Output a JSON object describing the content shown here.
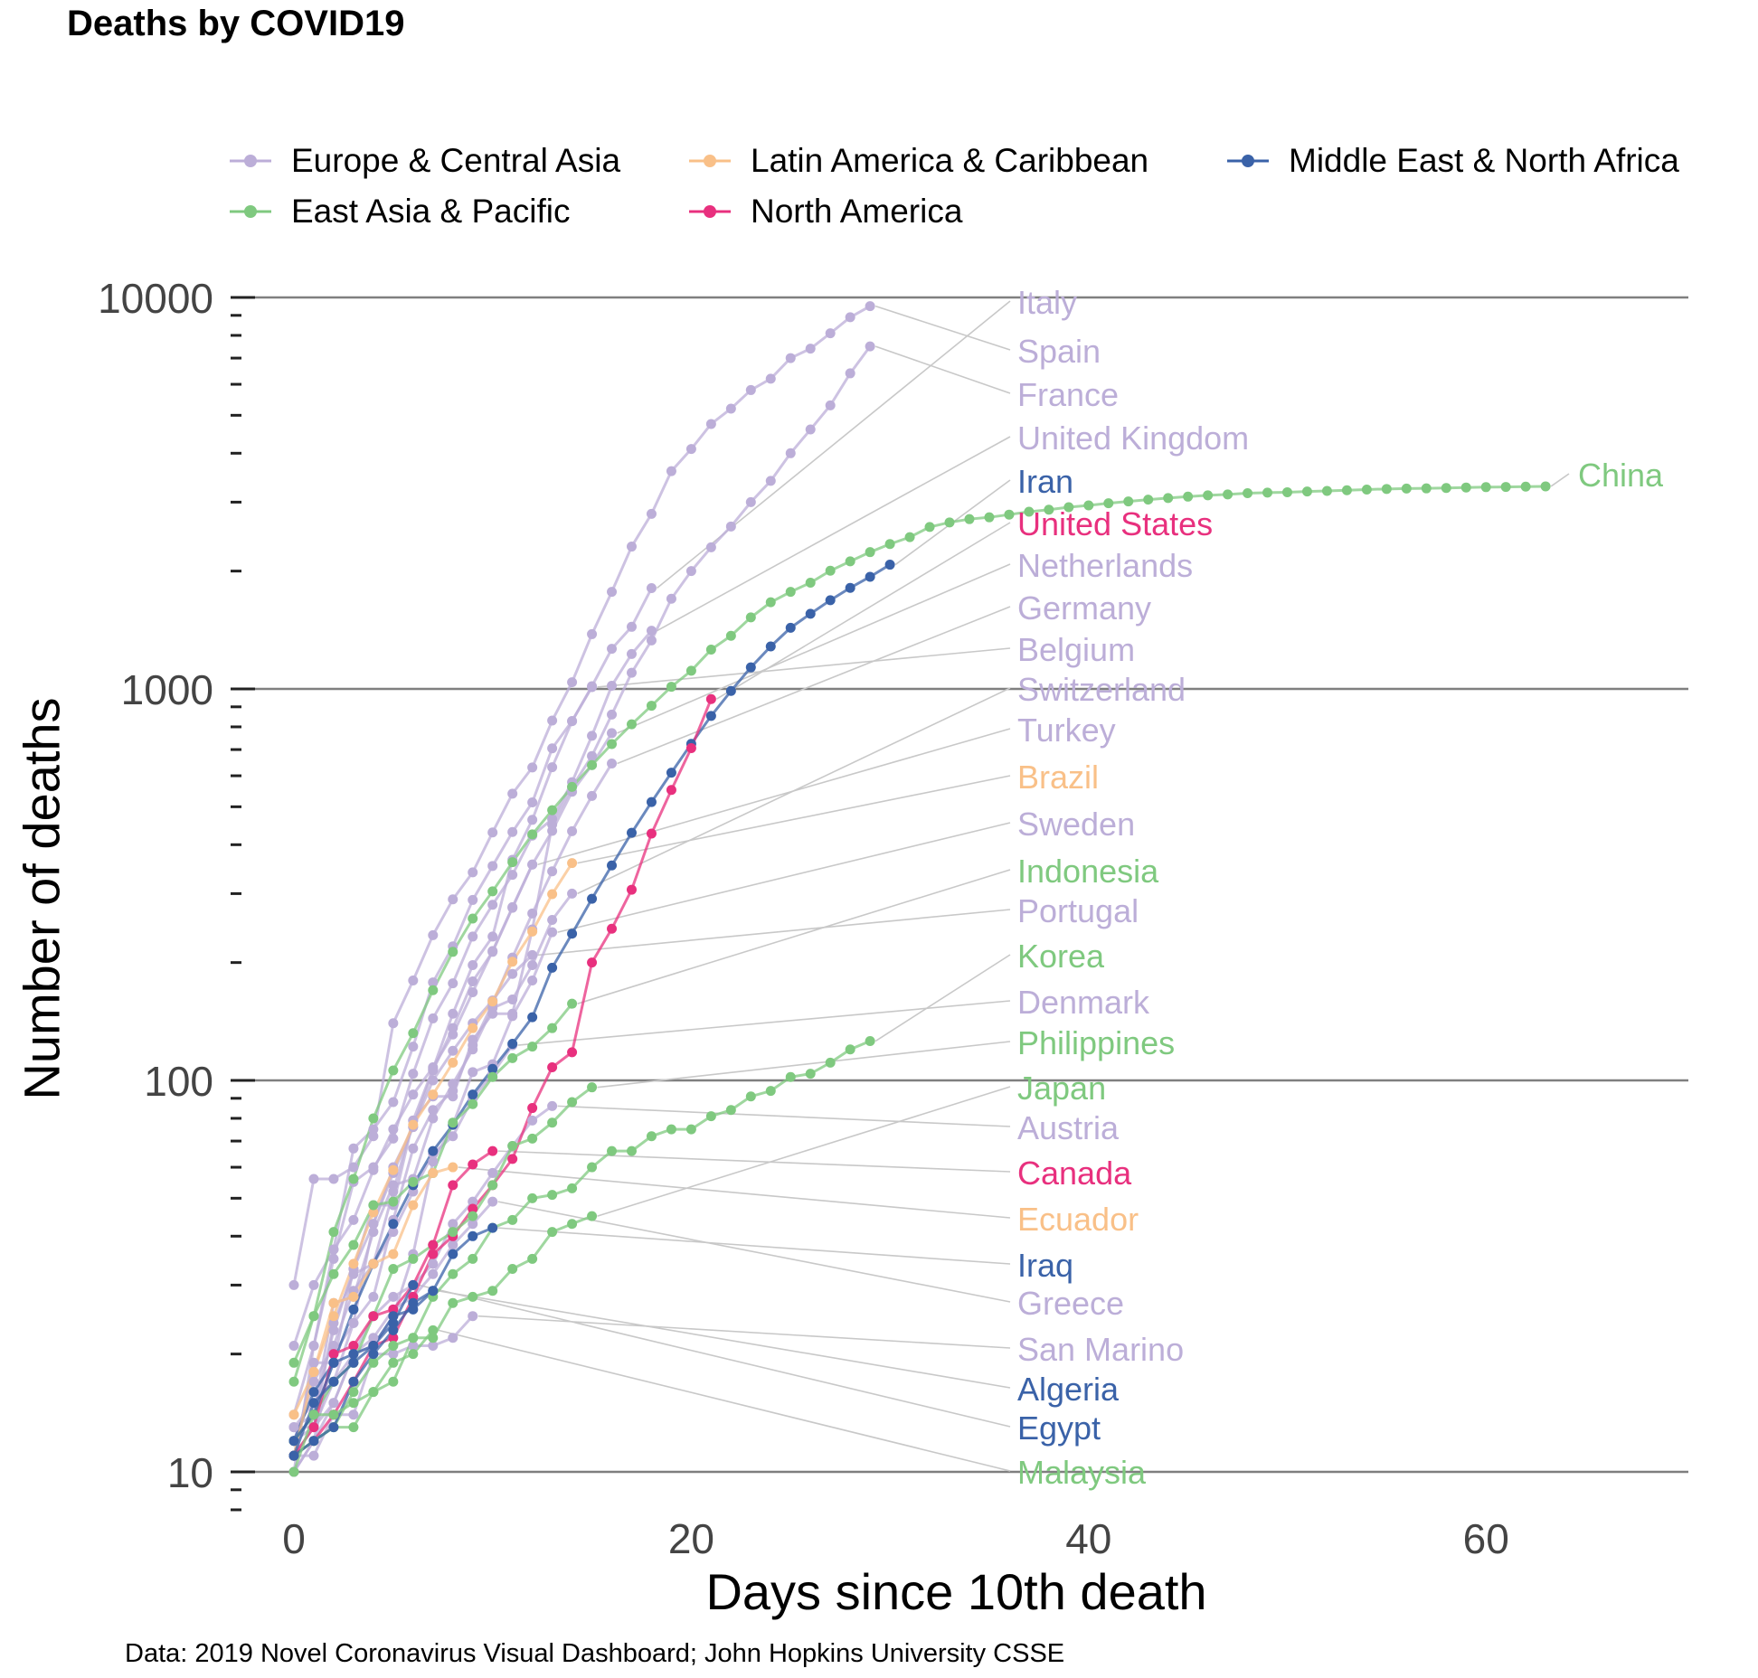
{
  "chart_data": {
    "type": "line",
    "title": "Deaths by COVID19",
    "xlabel": "Days since 10th death",
    "ylabel": "Number of deaths",
    "caption": "Data: 2019 Novel Coronavirus Visual Dashboard; John Hopkins University CSSE",
    "y_scale": "log10",
    "xlim": [
      -3,
      70
    ],
    "ylim": [
      8,
      10000
    ],
    "x_ticks": [
      0,
      20,
      40,
      60
    ],
    "y_ticks": [
      10,
      100,
      1000,
      10000
    ],
    "grid": "major y gridlines only",
    "legend_position": "top",
    "groups": [
      {
        "name": "Europe & Central Asia",
        "color": "#bcaed8"
      },
      {
        "name": "Latin America & Caribbean",
        "color": "#f9c088"
      },
      {
        "name": "Middle East & North Africa",
        "color": "#3a62a8"
      },
      {
        "name": "East Asia & Pacific",
        "color": "#7fc97f"
      },
      {
        "name": "North America",
        "color": "#e8307e"
      }
    ],
    "series": [
      {
        "name": "Italy",
        "group": "Europe & Central Asia",
        "x": [
          0,
          1,
          2,
          3,
          4,
          5,
          6,
          7,
          8,
          9,
          10,
          11,
          12,
          13,
          14,
          15,
          16,
          17,
          18
        ],
        "y": [
          12,
          17,
          21,
          29,
          34,
          52,
          79,
          107,
          148,
          197,
          233,
          366,
          463,
          631,
          827,
          1016,
          1266,
          1441,
          1809
        ]
      },
      {
        "name": "Spain",
        "group": "Europe & Central Asia",
        "x": [
          0,
          1,
          2,
          3,
          4,
          5,
          6,
          7,
          8,
          9,
          10,
          11,
          12,
          13,
          14,
          15,
          16,
          17,
          18,
          19,
          20,
          21,
          22,
          23,
          24,
          25,
          26,
          27,
          28,
          29
        ],
        "y": [
          30,
          56,
          56,
          60,
          72,
          140,
          180,
          235,
          290,
          340,
          430,
          540,
          630,
          830,
          1040,
          1380,
          1770,
          2310,
          2800,
          3600,
          4100,
          4750,
          5200,
          5800,
          6200,
          7000,
          7400,
          8100,
          8900,
          9500
        ]
      },
      {
        "name": "France",
        "group": "Europe & Central Asia",
        "x": [
          0,
          1,
          2,
          3,
          4,
          5,
          6,
          7,
          8,
          9,
          10,
          11,
          12,
          13,
          14,
          15,
          16,
          17,
          18,
          19,
          20,
          21,
          22,
          23,
          24,
          25,
          26,
          27,
          28,
          29
        ],
        "y": [
          11,
          19,
          19,
          33,
          48,
          48,
          79,
          91,
          91,
          127,
          148,
          148,
          243,
          450,
          562,
          674,
          860,
          1100,
          1330,
          1700,
          2000,
          2300,
          2600,
          3000,
          3400,
          4000,
          4600,
          5300,
          6400,
          7500
        ]
      },
      {
        "name": "United Kingdom",
        "group": "Europe & Central Asia",
        "x": [
          0,
          1,
          2,
          3,
          4,
          5,
          6,
          7,
          8,
          9,
          10,
          11,
          12,
          13,
          14,
          15,
          16,
          17,
          18
        ],
        "y": [
          10,
          21,
          35,
          55,
          60,
          71,
          104,
          144,
          177,
          233,
          281,
          335,
          422,
          465,
          578,
          759,
          1019,
          1228,
          1408
        ]
      },
      {
        "name": "Iran",
        "group": "Middle East & North Africa",
        "x": [
          0,
          1,
          2,
          3,
          4,
          5,
          6,
          7,
          8,
          9,
          10,
          11,
          12,
          13,
          14,
          15,
          16,
          17,
          18,
          19,
          20,
          21,
          22,
          23,
          24,
          25,
          26,
          27,
          28,
          29,
          30
        ],
        "y": [
          12,
          16,
          19,
          26,
          34,
          43,
          54,
          66,
          77,
          92,
          107,
          124,
          145,
          194,
          237,
          291,
          354,
          429,
          514,
          611,
          724,
          853,
          988,
          1135,
          1284,
          1433,
          1556,
          1685,
          1812,
          1934,
          2077
        ]
      },
      {
        "name": "United States",
        "group": "North America",
        "x": [
          0,
          1,
          2,
          3,
          4,
          5,
          6,
          7,
          8,
          9,
          10,
          11,
          12,
          13,
          14,
          15,
          16,
          17,
          18,
          19,
          20,
          21
        ],
        "y": [
          11,
          12,
          14,
          17,
          21,
          22,
          28,
          36,
          40,
          47,
          54,
          63,
          85,
          108,
          118,
          200,
          244,
          307,
          427,
          552,
          706,
          942
        ]
      },
      {
        "name": "Netherlands",
        "group": "Europe & Central Asia",
        "x": [
          0,
          1,
          2,
          3,
          4,
          5,
          6,
          7,
          8,
          9,
          10,
          11,
          12,
          13,
          14,
          15,
          16
        ],
        "y": [
          10,
          12,
          20,
          24,
          43,
          58,
          76,
          106,
          136,
          179,
          213,
          276,
          356,
          434,
          546,
          639,
          771
        ]
      },
      {
        "name": "Germany",
        "group": "Europe & Central Asia",
        "x": [
          0,
          1,
          2,
          3,
          4,
          5,
          6,
          7,
          8,
          9,
          10,
          11,
          12,
          13,
          14,
          15,
          16
        ],
        "y": [
          12,
          13,
          17,
          24,
          28,
          44,
          67,
          84,
          94,
          123,
          157,
          206,
          267,
          342,
          433,
          533,
          645
        ]
      },
      {
        "name": "Belgium",
        "group": "Europe & Central Asia",
        "x": [
          0,
          1,
          2,
          3,
          4,
          5,
          6,
          7,
          8,
          9,
          10,
          11,
          12,
          13,
          14,
          15
        ],
        "y": [
          14,
          21,
          37,
          67,
          75,
          88,
          122,
          178,
          220,
          289,
          353,
          431,
          513,
          705,
          828,
          1011
        ]
      },
      {
        "name": "Switzerland",
        "group": "Europe & Central Asia",
        "x": [
          0,
          1,
          2,
          3,
          4,
          5,
          6,
          7,
          8,
          9,
          10,
          11,
          12,
          13,
          14
        ],
        "y": [
          13,
          14,
          27,
          28,
          41,
          54,
          56,
          80,
          98,
          120,
          153,
          161,
          197,
          257,
          300
        ]
      },
      {
        "name": "Turkey",
        "group": "Europe & Central Asia",
        "x": [
          0,
          1,
          2,
          3,
          4,
          5,
          6,
          7,
          8,
          9,
          10,
          11,
          12
        ],
        "y": [
          21,
          30,
          37,
          44,
          59,
          75,
          92,
          108,
          131,
          168,
          214,
          277,
          356
        ]
      },
      {
        "name": "Brazil",
        "group": "Latin America & Caribbean",
        "x": [
          0,
          1,
          2,
          3,
          4,
          5,
          6,
          7,
          8,
          9,
          10,
          11,
          12,
          13,
          14
        ],
        "y": [
          11,
          18,
          25,
          34,
          46,
          59,
          77,
          92,
          111,
          136,
          159,
          201,
          240,
          299,
          359
        ]
      },
      {
        "name": "Sweden",
        "group": "Europe & Central Asia",
        "x": [
          0,
          1,
          2,
          3,
          4,
          5,
          6,
          7,
          8,
          9,
          10,
          11,
          12,
          13
        ],
        "y": [
          10,
          12,
          15,
          20,
          21,
          25,
          36,
          62,
          77,
          105,
          110,
          146,
          180,
          239
        ]
      },
      {
        "name": "Indonesia",
        "group": "East Asia & Pacific",
        "x": [
          0,
          1,
          2,
          3,
          4,
          5,
          6,
          7,
          8,
          9,
          10,
          11,
          12,
          13,
          14
        ],
        "y": [
          19,
          25,
          32,
          38,
          48,
          49,
          55,
          58,
          78,
          87,
          102,
          114,
          122,
          136,
          157
        ]
      },
      {
        "name": "Portugal",
        "group": "Europe & Central Asia",
        "x": [
          0,
          1,
          2,
          3,
          4,
          5,
          6,
          7,
          8,
          9,
          10,
          11,
          12
        ],
        "y": [
          12,
          14,
          23,
          33,
          43,
          60,
          76,
          100,
          119,
          140,
          160,
          187,
          209
        ]
      },
      {
        "name": "Korea",
        "group": "East Asia & Pacific",
        "x": [
          0,
          1,
          2,
          3,
          4,
          5,
          6,
          7,
          8,
          9,
          10,
          11,
          12,
          13,
          14,
          15,
          16,
          17,
          18,
          19,
          20,
          21,
          22,
          23,
          24,
          25,
          26,
          27,
          28,
          29
        ],
        "y": [
          11,
          12,
          13,
          13,
          16,
          17,
          22,
          28,
          32,
          35,
          42,
          44,
          50,
          51,
          53,
          60,
          66,
          66,
          72,
          75,
          75,
          81,
          84,
          91,
          94,
          102,
          104,
          111,
          120,
          126
        ]
      },
      {
        "name": "Denmark",
        "group": "Europe & Central Asia",
        "x": [
          0,
          1,
          2,
          3,
          4,
          5,
          6,
          7,
          8,
          9,
          10,
          11
        ],
        "y": [
          13,
          13,
          24,
          32,
          34,
          41,
          52,
          65,
          72,
          90,
          104,
          123
        ]
      },
      {
        "name": "Philippines",
        "group": "East Asia & Pacific",
        "x": [
          0,
          1,
          2,
          3,
          4,
          5,
          6,
          7,
          8,
          9,
          10,
          11,
          12,
          13,
          14,
          15
        ],
        "y": [
          12,
          14,
          17,
          19,
          25,
          33,
          35,
          38,
          41,
          45,
          54,
          68,
          71,
          78,
          88,
          96
        ]
      },
      {
        "name": "Japan",
        "group": "East Asia & Pacific",
        "x": [
          0,
          1,
          2,
          3,
          4,
          5,
          6,
          7,
          8,
          9,
          10,
          11,
          12,
          13,
          14,
          15
        ],
        "y": [
          11,
          12,
          13,
          16,
          19,
          21,
          22,
          22,
          27,
          28,
          29,
          33,
          35,
          41,
          43,
          45
        ]
      },
      {
        "name": "Austria",
        "group": "Europe & Central Asia",
        "x": [
          0,
          1,
          2,
          3,
          4,
          5,
          6,
          7,
          8,
          9,
          10,
          11,
          12,
          13
        ],
        "y": [
          11,
          13,
          15,
          20,
          25,
          28,
          30,
          34,
          43,
          49,
          58,
          68,
          79,
          86
        ]
      },
      {
        "name": "Canada",
        "group": "North America",
        "x": [
          0,
          1,
          2,
          3,
          4,
          5,
          6,
          7,
          8,
          9,
          10
        ],
        "y": [
          11,
          13,
          20,
          21,
          25,
          26,
          30,
          38,
          54,
          61,
          66
        ]
      },
      {
        "name": "Ecuador",
        "group": "Latin America & Caribbean",
        "x": [
          0,
          1,
          2,
          3,
          4,
          5,
          6,
          7,
          8
        ],
        "y": [
          14,
          18,
          27,
          28,
          34,
          36,
          48,
          58,
          60
        ]
      },
      {
        "name": "Iraq",
        "group": "Middle East & North Africa",
        "x": [
          0,
          1,
          2,
          3,
          4,
          5,
          6,
          7,
          8,
          9,
          10
        ],
        "y": [
          11,
          12,
          13,
          17,
          20,
          23,
          27,
          29,
          36,
          40,
          42
        ]
      },
      {
        "name": "Greece",
        "group": "Europe & Central Asia",
        "x": [
          0,
          1,
          2,
          3,
          4,
          5,
          6,
          7,
          8,
          9,
          10
        ],
        "y": [
          13,
          15,
          17,
          20,
          22,
          26,
          28,
          32,
          38,
          43,
          49
        ]
      },
      {
        "name": "San Marino",
        "group": "Europe & Central Asia",
        "x": [
          0,
          1,
          2,
          3,
          4,
          5,
          6,
          7,
          8,
          9
        ],
        "y": [
          11,
          11,
          14,
          14,
          20,
          20,
          21,
          21,
          22,
          25
        ]
      },
      {
        "name": "Algeria",
        "group": "Middle East & North Africa",
        "x": [
          0,
          1,
          2,
          3,
          4,
          5,
          6,
          7
        ],
        "y": [
          11,
          15,
          17,
          19,
          21,
          25,
          26,
          29
        ]
      },
      {
        "name": "Egypt",
        "group": "Middle East & North Africa",
        "x": [
          0,
          1,
          2,
          3,
          4,
          5,
          6
        ],
        "y": [
          12,
          14,
          19,
          20,
          21,
          24,
          30
        ]
      },
      {
        "name": "Malaysia",
        "group": "East Asia & Pacific",
        "x": [
          0,
          1,
          2,
          3,
          4,
          5,
          6,
          7
        ],
        "y": [
          10,
          14,
          14,
          15,
          16,
          19,
          20,
          23
        ]
      },
      {
        "name": "China",
        "group": "East Asia & Pacific",
        "x": [
          0,
          1,
          2,
          3,
          4,
          5,
          6,
          7,
          8,
          9,
          10,
          11,
          12,
          13,
          14,
          15,
          16,
          17,
          18,
          19,
          20,
          21,
          22,
          23,
          24,
          25,
          26,
          27,
          28,
          29,
          30,
          31,
          32,
          33,
          34,
          35,
          36,
          37,
          38,
          39,
          40,
          41,
          42,
          43,
          44,
          45,
          46,
          47,
          48,
          49,
          50,
          51,
          52,
          53,
          54,
          55,
          56,
          57,
          58,
          59,
          60,
          61,
          62,
          63
        ],
        "y": [
          17,
          25,
          41,
          56,
          80,
          106,
          132,
          170,
          213,
          259,
          304,
          361,
          425,
          490,
          562,
          639,
          723,
          812,
          906,
          1013,
          1113,
          1260,
          1367,
          1523,
          1665,
          1770,
          1868,
          2004,
          2118,
          2236,
          2345,
          2442,
          2592,
          2663,
          2715,
          2744,
          2788,
          2835,
          2870,
          2912,
          2943,
          2981,
          3013,
          3045,
          3073,
          3099,
          3123,
          3140,
          3162,
          3173,
          3180,
          3194,
          3204,
          3218,
          3231,
          3242,
          3249,
          3253,
          3261,
          3270,
          3277,
          3281,
          3287,
          3292
        ]
      }
    ]
  }
}
